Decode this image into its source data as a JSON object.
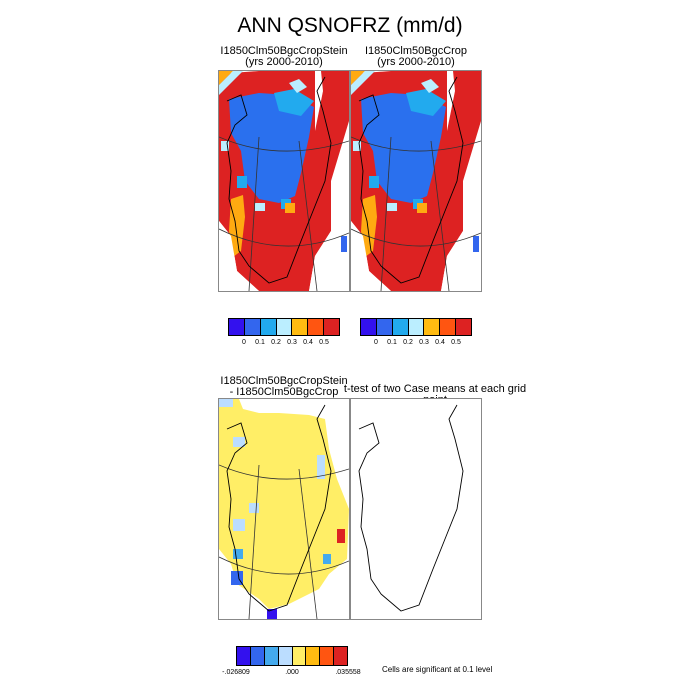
{
  "figure": {
    "title": "ANN QSNOFRZ (mm/d)",
    "top_left": {
      "title": "I1850Clm50BgcCropStein",
      "subtitle": "(yrs 2000-2010)"
    },
    "top_right": {
      "title": "I1850Clm50BgcCrop",
      "subtitle": "(yrs 2000-2010)"
    },
    "bottom_left": {
      "title": "I1850Clm50BgcCropStein",
      "subtitle": "- I1850Clm50BgcCrop"
    },
    "bottom_right": {
      "title": "t-test of two Case means at each grid point"
    },
    "significance_note": "Cells are significant at 0.1 level"
  },
  "colorbar_top": {
    "colors": [
      "#3311ee",
      "#3366ee",
      "#22aaee",
      "#bbeeff",
      "#ffbb11",
      "#ff5511",
      "#dd2222"
    ],
    "labels": [
      "0",
      "0.1",
      "0.2",
      "0.3",
      "0.4",
      "0.5"
    ]
  },
  "colorbar_bottom": {
    "colors": [
      "#3311ee",
      "#3366ee",
      "#44aaee",
      "#bbddff",
      "#ffee66",
      "#ffbb11",
      "#ff5511",
      "#dd2222"
    ],
    "labels": [
      "-.026809",
      ".000",
      ".035558"
    ]
  },
  "colors": {
    "red": "#dd2222",
    "orange": "#ffaa11",
    "blue": "#2a70ee",
    "cyan": "#22aaee",
    "light": "#bbeeff",
    "yellow": "#ffee66",
    "violet": "#3311ee"
  }
}
